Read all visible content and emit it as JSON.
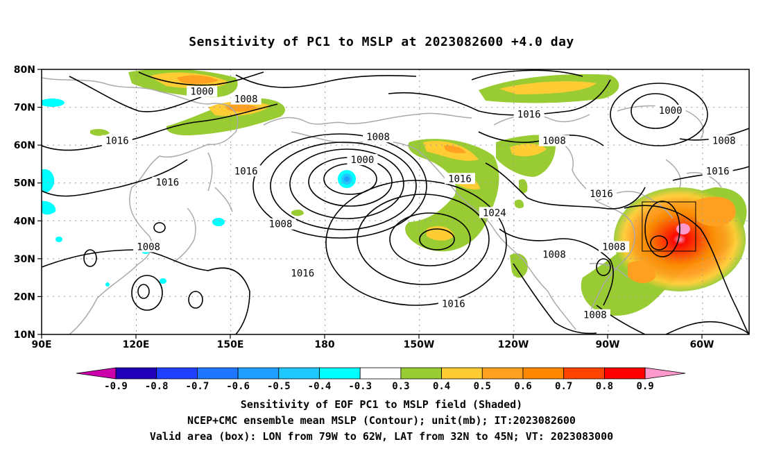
{
  "title": "Sensitivity of PC1 to MSLP at 2023082600 +4.0 day",
  "lat_labels": [
    "80N",
    "70N",
    "60N",
    "50N",
    "40N",
    "30N",
    "20N",
    "10N"
  ],
  "lon_labels": [
    "90E",
    "120E",
    "150E",
    "180",
    "150W",
    "120W",
    "90W",
    "60W"
  ],
  "contour_labels": [
    {
      "text": "1000",
      "lon": 141,
      "lat": 74
    },
    {
      "text": "1008",
      "lon": 155,
      "lat": 72
    },
    {
      "text": "1016",
      "lon": 114,
      "lat": 61
    },
    {
      "text": "1016",
      "lon": 130,
      "lat": 50
    },
    {
      "text": "1016",
      "lon": 155,
      "lat": 53
    },
    {
      "text": "1008",
      "lon": 197,
      "lat": 62
    },
    {
      "text": "1000",
      "lon": 192,
      "lat": 56
    },
    {
      "text": "1016",
      "lon": 245,
      "lat": 68
    },
    {
      "text": "1008",
      "lon": 253,
      "lat": 61
    },
    {
      "text": "1016",
      "lon": 223,
      "lat": 51
    },
    {
      "text": "1024",
      "lon": 234,
      "lat": 42
    },
    {
      "text": "1008",
      "lon": 166,
      "lat": 39
    },
    {
      "text": "1008",
      "lon": 124,
      "lat": 33
    },
    {
      "text": "1016",
      "lon": 173,
      "lat": 26
    },
    {
      "text": "1016",
      "lon": 221,
      "lat": 18
    },
    {
      "text": "1008",
      "lon": 253,
      "lat": 31
    },
    {
      "text": "1008",
      "lon": 266,
      "lat": 15
    },
    {
      "text": "1016",
      "lon": 268,
      "lat": 47
    },
    {
      "text": "1008",
      "lon": 272,
      "lat": 33
    },
    {
      "text": "1000",
      "lon": 290,
      "lat": 69
    },
    {
      "text": "1008",
      "lon": 307,
      "lat": 61
    },
    {
      "text": "1016",
      "lon": 305,
      "lat": 53
    }
  ],
  "colorbar": {
    "labels": [
      "-0.9",
      "-0.8",
      "-0.7",
      "-0.6",
      "-0.5",
      "-0.4",
      "-0.3",
      "0.3",
      "0.4",
      "0.5",
      "0.6",
      "0.7",
      "0.8",
      "0.9"
    ],
    "colors": [
      "#1f00b8",
      "#1f40ff",
      "#1f76ff",
      "#1fa0ff",
      "#1fc8ff",
      "#00ffff",
      "#ffffff",
      "#99cc33",
      "#ffcc33",
      "#ffa020",
      "#ff8800",
      "#ff4400",
      "#ff0000"
    ],
    "low_tip": "#cc00aa",
    "high_tip": "#ff99cc"
  },
  "valid_box": {
    "lon_min": 281,
    "lon_max": 298,
    "lat_min": 32,
    "lat_max": 45
  },
  "captions": [
    "Sensitivity of EOF PC1 to MSLP field (Shaded)",
    "NCEP+CMC ensemble mean MSLP (Contour); unit(mb); IT:2023082600",
    "Valid area (box): LON from 79W to 62W, LAT from 32N to 45N; VT: 2023083000"
  ]
}
